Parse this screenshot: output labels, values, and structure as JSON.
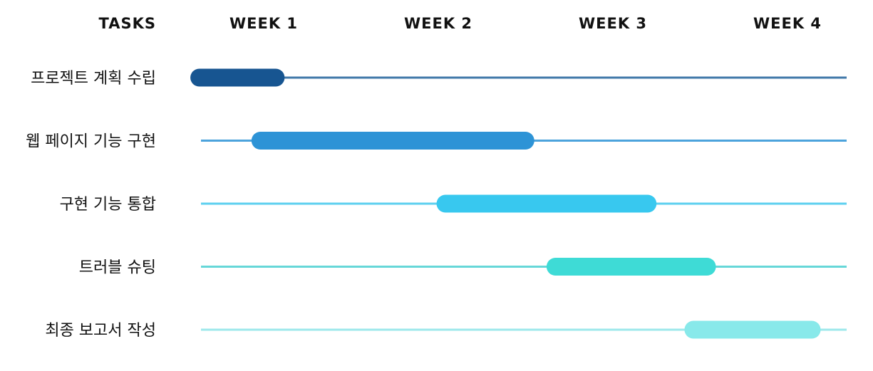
{
  "chart_data": {
    "type": "gantt",
    "header_label": "TASKS",
    "weeks": [
      "WEEK 1",
      "WEEK 2",
      "WEEK 3",
      "WEEK 4"
    ],
    "x_range": [
      0.5,
      4.5
    ],
    "tasks": [
      {
        "name": "프로젝트 계획 수립",
        "start": 0.58,
        "end": 1.12,
        "color": "#175591",
        "track_color": "#3F77A8"
      },
      {
        "name": "웹 페이지 기능 구현",
        "start": 0.93,
        "end": 2.55,
        "color": "#2D93D6",
        "track_color": "#4CA3DC"
      },
      {
        "name": "구현 기능 통합",
        "start": 1.99,
        "end": 3.25,
        "color": "#38C8EF",
        "track_color": "#5CCFEF"
      },
      {
        "name": "트러블 슈팅",
        "start": 2.62,
        "end": 3.59,
        "color": "#3EDBD6",
        "track_color": "#66D7D8"
      },
      {
        "name": "최종 보고서 작성",
        "start": 3.41,
        "end": 4.19,
        "color": "#88E9EA",
        "track_color": "#9EE8EB"
      }
    ]
  }
}
